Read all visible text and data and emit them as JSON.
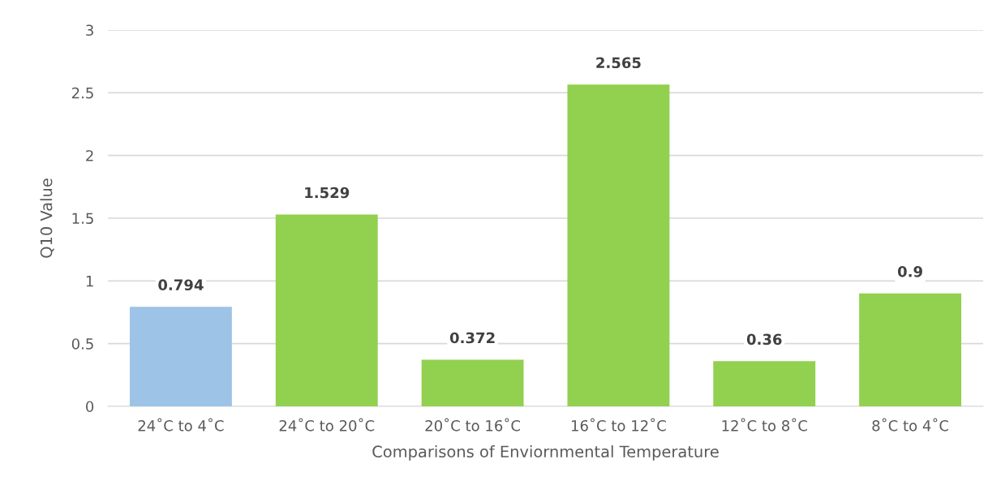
{
  "chart_data": {
    "type": "bar",
    "xlabel": "Comparisons of Enviornmental Temperature",
    "ylabel": "Q10 Value",
    "categories": [
      "24˚C to 4˚C",
      "24˚C to 20˚C",
      "20˚C to 16˚C",
      "16˚C to 12˚C",
      "12˚C to 8˚C",
      "8˚C to 4˚C"
    ],
    "values": [
      0.794,
      1.529,
      0.372,
      2.565,
      0.36,
      0.9
    ],
    "colors": [
      "#9dc3e6",
      "#92d050",
      "#92d050",
      "#92d050",
      "#92d050",
      "#92d050"
    ],
    "ylim": [
      0,
      3
    ],
    "yticks": [
      0,
      0.5,
      1,
      1.5,
      2,
      2.5,
      3
    ],
    "grid": "y",
    "data_labels": true
  }
}
